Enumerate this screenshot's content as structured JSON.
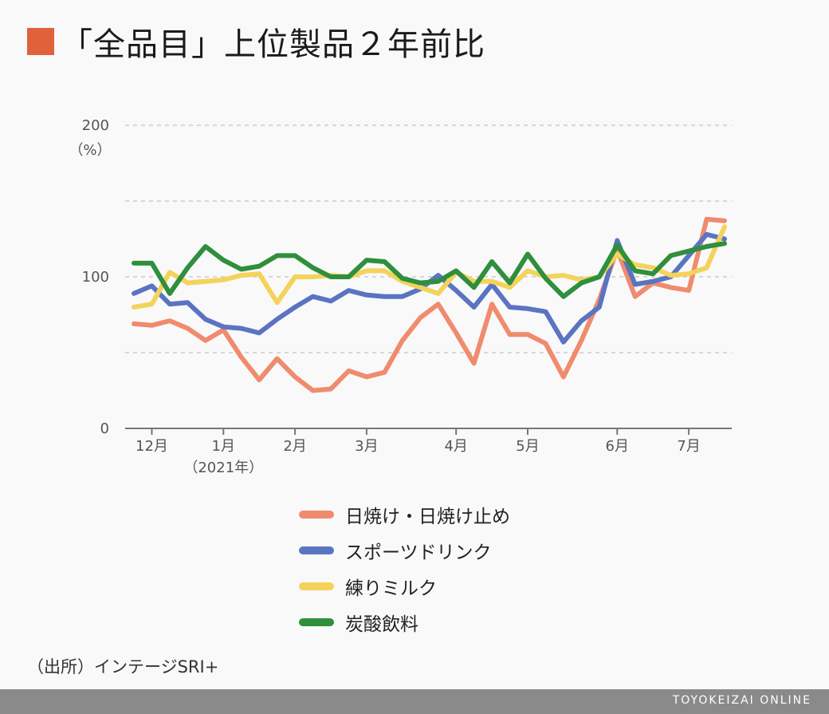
{
  "title": "「全品目」上位製品２年前比",
  "colors": {
    "title_square": "#e0623c",
    "grid": "#cccccc",
    "axis": "#777777",
    "footer": "#8a8a8a"
  },
  "source": "（出所）インテージSRI+",
  "footer_brand": "TOYOKEIZAI ONLINE",
  "chart_data": {
    "type": "line",
    "title": "「全品目」上位製品２年前比",
    "ylabel": "（%）",
    "xlabel": "",
    "ylim": [
      0,
      200
    ],
    "yticks": [
      "0",
      "100",
      "200"
    ],
    "xticks": [
      {
        "index": 1,
        "label": "12月",
        "sublabel": ""
      },
      {
        "index": 5,
        "label": "1月",
        "sublabel": "（2021年）"
      },
      {
        "index": 9,
        "label": "2月",
        "sublabel": ""
      },
      {
        "index": 13,
        "label": "3月",
        "sublabel": ""
      },
      {
        "index": 18,
        "label": "4月",
        "sublabel": ""
      },
      {
        "index": 22,
        "label": "5月",
        "sublabel": ""
      },
      {
        "index": 27,
        "label": "6月",
        "sublabel": ""
      },
      {
        "index": 31,
        "label": "7月",
        "sublabel": ""
      }
    ],
    "x_count": 34,
    "grid": true,
    "legend_position": "bottom",
    "series": [
      {
        "name": "日焼け・日焼け止め",
        "color": "#f08b6e",
        "values": [
          69,
          68,
          71,
          66,
          58,
          65,
          47,
          32,
          46,
          34,
          25,
          26,
          38,
          34,
          37,
          58,
          73,
          82,
          63,
          43,
          82,
          62,
          62,
          56,
          34,
          58,
          85,
          118,
          87,
          96,
          93,
          91,
          138,
          137
        ]
      },
      {
        "name": "スポーツドリンク",
        "color": "#5b74c2",
        "values": [
          89,
          94,
          82,
          83,
          72,
          67,
          66,
          63,
          72,
          80,
          87,
          84,
          91,
          88,
          87,
          87,
          92,
          101,
          91,
          80,
          95,
          80,
          79,
          77,
          57,
          71,
          80,
          124,
          95,
          97,
          100,
          114,
          128,
          125
        ]
      },
      {
        "name": "練りミルク",
        "color": "#f3d35a",
        "values": [
          80,
          82,
          103,
          96,
          97,
          98,
          101,
          102,
          83,
          100,
          100,
          101,
          100,
          104,
          104,
          97,
          93,
          89,
          103,
          97,
          97,
          93,
          104,
          100,
          101,
          98,
          100,
          115,
          108,
          106,
          101,
          102,
          106,
          133
        ]
      },
      {
        "name": "炭酸飲料",
        "color": "#2f8f3c",
        "values": [
          109,
          109,
          89,
          106,
          120,
          111,
          105,
          107,
          114,
          114,
          106,
          100,
          100,
          111,
          110,
          99,
          96,
          97,
          104,
          93,
          110,
          96,
          115,
          99,
          87,
          96,
          100,
          121,
          104,
          102,
          114,
          117,
          120,
          122
        ]
      }
    ]
  }
}
